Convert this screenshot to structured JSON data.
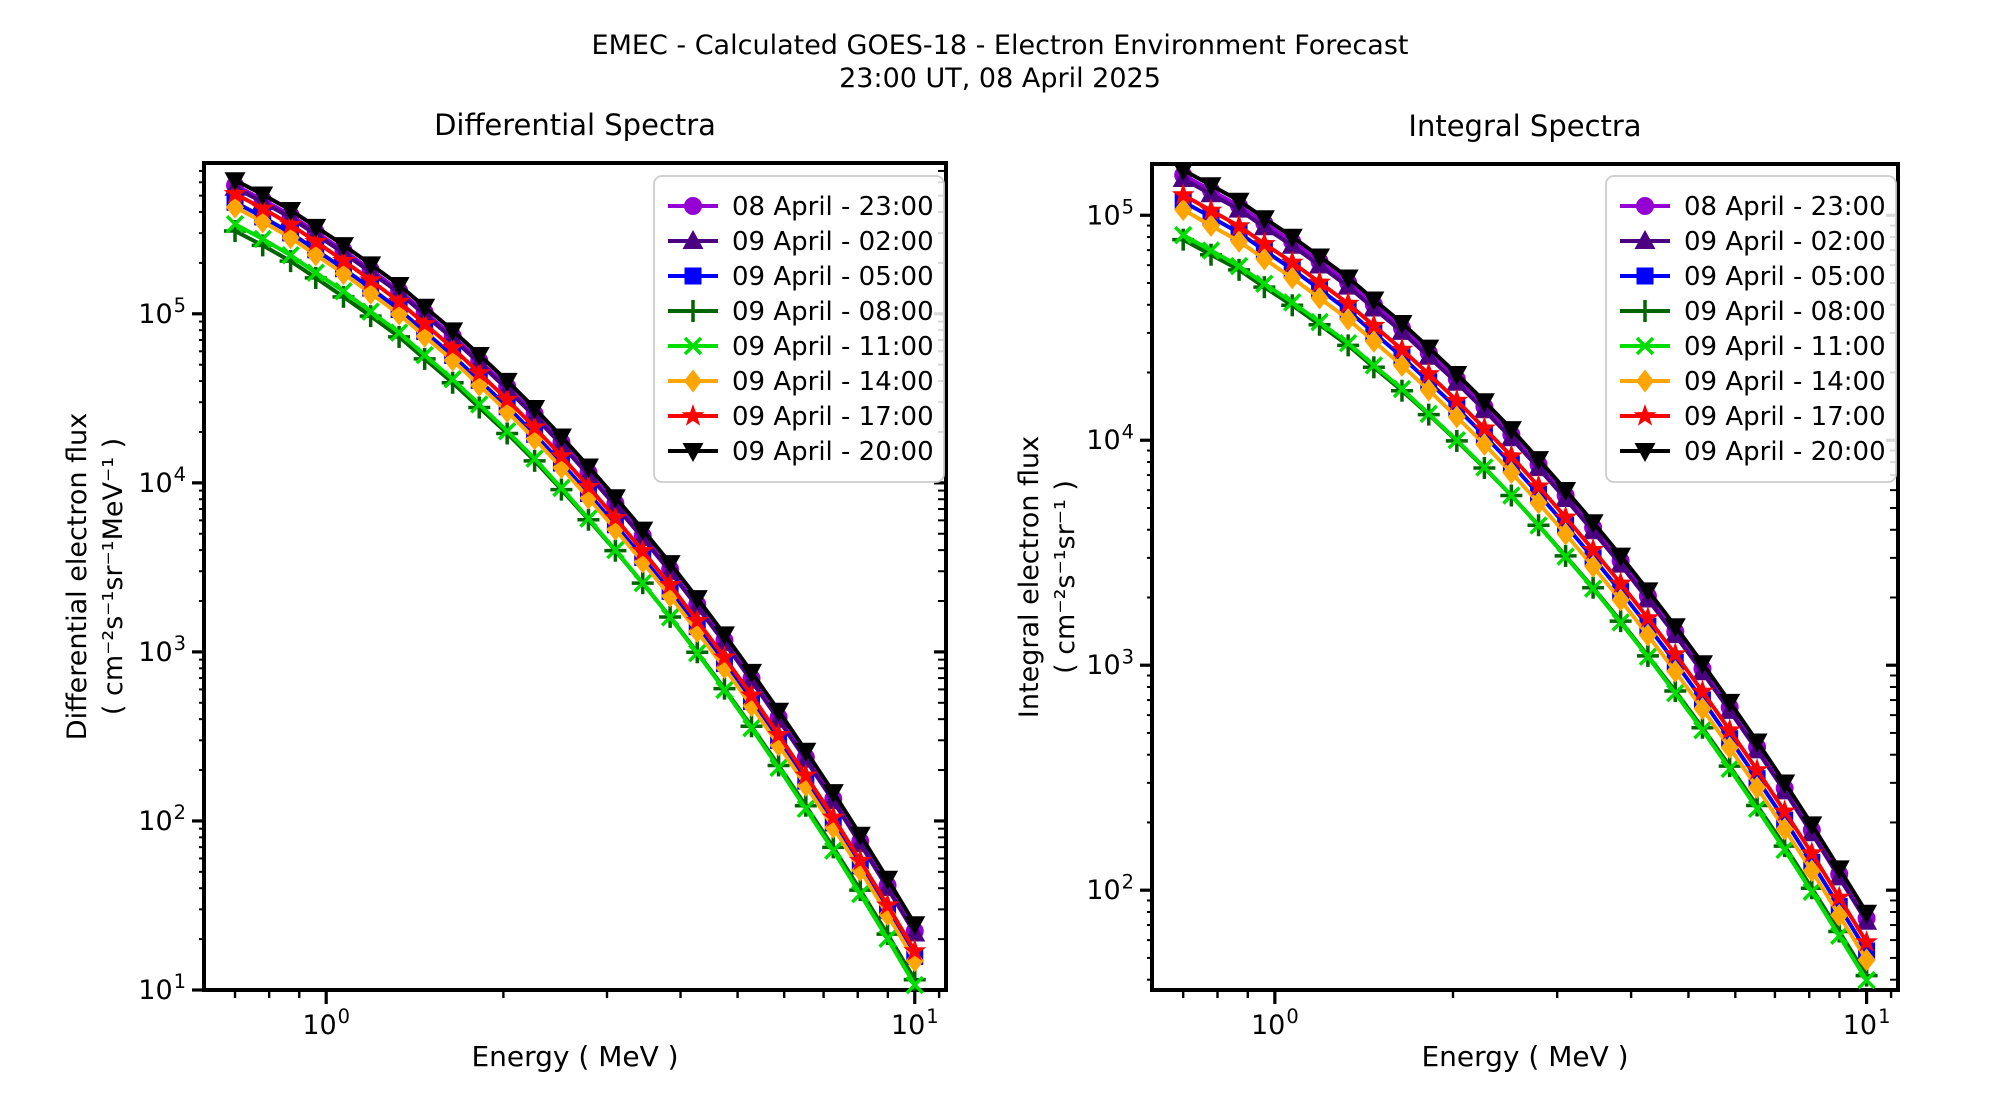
{
  "title": {
    "line1": "EMEC - Calculated GOES-18 - Electron Environment Forecast",
    "line2": "23:00 UT, 08 April 2025"
  },
  "chart_data": [
    {
      "type": "line",
      "title": "Differential Spectra",
      "xlabel": "Energy ( MeV )",
      "ylabel_line1": "Differential electron flux",
      "ylabel_line2": "( cm⁻²s⁻¹sr⁻¹MeV⁻¹ )",
      "xscale": "log",
      "yscale": "log",
      "xlim": [
        0.62,
        11.3
      ],
      "ylim": [
        10,
        780000
      ],
      "grid": false,
      "legend_position": "upper right",
      "xticks": [
        {
          "v": 1,
          "label": "10⁰"
        },
        {
          "v": 10,
          "label": "10¹"
        }
      ],
      "xticks_minor": [
        0.7,
        0.8,
        0.9,
        2,
        3,
        4,
        5,
        6,
        7,
        8,
        9,
        11
      ],
      "yticks": [
        {
          "v": 10,
          "label": "10¹"
        },
        {
          "v": 100,
          "label": "10²"
        },
        {
          "v": 1000,
          "label": "10³"
        },
        {
          "v": 10000,
          "label": "10⁴"
        },
        {
          "v": 100000,
          "label": "10⁵"
        }
      ],
      "x": [
        0.7,
        0.78,
        0.87,
        0.96,
        1.07,
        1.19,
        1.33,
        1.47,
        1.64,
        1.82,
        2.03,
        2.26,
        2.51,
        2.79,
        3.1,
        3.45,
        3.84,
        4.27,
        4.75,
        5.28,
        5.87,
        6.53,
        7.27,
        8.08,
        8.99,
        10
      ],
      "series": [
        {
          "name": "08 April - 23:00",
          "color": "#9400D3",
          "marker": "circle",
          "values": [
            576000,
            474000,
            383000,
            304000,
            237000,
            182000,
            137000,
            102000,
            73900,
            52800,
            37100,
            25600,
            17400,
            11500,
            7570,
            4870,
            3080,
            1910,
            1170,
            699,
            411,
            238,
            135,
            75.7,
            41.5,
            22.3
          ]
        },
        {
          "name": "09 April - 02:00",
          "color": "#4B0082",
          "marker": "triangle-up",
          "values": [
            557000,
            458000,
            370000,
            294000,
            229000,
            176000,
            133000,
            98600,
            71400,
            51100,
            35800,
            24700,
            16800,
            11100,
            7320,
            4710,
            2980,
            1850,
            1130,
            675,
            397,
            230,
            131,
            73.1,
            40.1,
            21.6
          ]
        },
        {
          "name": "09 April - 05:00",
          "color": "#0000FF",
          "marker": "square",
          "values": [
            457000,
            374000,
            301000,
            239000,
            185000,
            142000,
            106000,
            78600,
            56700,
            40400,
            28200,
            19400,
            13100,
            8650,
            5650,
            3620,
            2280,
            1410,
            854,
            510,
            299,
            172,
            97.3,
            54.1,
            29.6,
            15.8
          ]
        },
        {
          "name": "09 April - 08:00",
          "color": "#006400",
          "marker": "plus",
          "values": [
            309000,
            254000,
            205000,
            163000,
            126000,
            96900,
            73000,
            54100,
            39100,
            27900,
            19600,
            13500,
            9120,
            6050,
            3970,
            2550,
            1610,
            995,
            606,
            363,
            213,
            123,
            69.8,
            39,
            21.4,
            11.5
          ]
        },
        {
          "name": "09 April - 11:00",
          "color": "#00DD00",
          "marker": "x",
          "values": [
            339000,
            277000,
            222000,
            175000,
            136000,
            103000,
            77400,
            57000,
            41000,
            29100,
            20200,
            13900,
            9320,
            6140,
            4000,
            2550,
            1600,
            984,
            595,
            354,
            206,
            118,
            66.7,
            36.9,
            20.1,
            10.7
          ]
        },
        {
          "name": "09 April - 14:00",
          "color": "#FFA500",
          "marker": "diamond",
          "values": [
            427000,
            350000,
            282000,
            223000,
            173000,
            132000,
            99500,
            73600,
            53100,
            37800,
            26400,
            18200,
            12300,
            8120,
            5310,
            3400,
            2140,
            1320,
            804,
            480,
            281,
            162,
            91.7,
            51.1,
            27.9,
            14.9
          ]
        },
        {
          "name": "09 April - 17:00",
          "color": "#FF0000",
          "marker": "star",
          "values": [
            513000,
            420000,
            337000,
            267000,
            206000,
            158000,
            118000,
            87200,
            62800,
            44600,
            31100,
            21300,
            14400,
            9490,
            6200,
            3960,
            2490,
            1530,
            929,
            553,
            323,
            186,
            105,
            58.2,
            31.7,
            17
          ]
        },
        {
          "name": "09 April - 20:00",
          "color": "#000000",
          "marker": "triangle-down",
          "values": [
            617000,
            508000,
            411000,
            327000,
            255000,
            196000,
            148000,
            110000,
            79800,
            57100,
            40100,
            27700,
            18800,
            12500,
            8220,
            5290,
            3350,
            2080,
            1270,
            762,
            449,
            260,
            148,
            82.8,
            45.5,
            24.5
          ]
        }
      ]
    },
    {
      "type": "line",
      "title": "Integral Spectra",
      "xlabel": "Energy ( MeV )",
      "ylabel_line1": "Integral electron flux",
      "ylabel_line2": "( cm⁻²s⁻¹sr⁻¹ )",
      "xscale": "log",
      "yscale": "log",
      "xlim": [
        0.62,
        11.3
      ],
      "ylim": [
        36,
        169000
      ],
      "grid": false,
      "legend_position": "upper right",
      "xticks": [
        {
          "v": 1,
          "label": "10⁰"
        },
        {
          "v": 10,
          "label": "10¹"
        }
      ],
      "xticks_minor": [
        0.7,
        0.8,
        0.9,
        2,
        3,
        4,
        5,
        6,
        7,
        8,
        9,
        11
      ],
      "yticks": [
        {
          "v": 100,
          "label": "10²"
        },
        {
          "v": 1000,
          "label": "10³"
        },
        {
          "v": 10000,
          "label": "10⁴"
        },
        {
          "v": 100000,
          "label": "10⁵"
        }
      ],
      "x": [
        0.7,
        0.78,
        0.87,
        0.96,
        1.07,
        1.19,
        1.33,
        1.47,
        1.64,
        1.82,
        2.03,
        2.26,
        2.51,
        2.79,
        3.1,
        3.45,
        3.84,
        4.27,
        4.75,
        5.28,
        5.87,
        6.53,
        7.27,
        8.08,
        8.99,
        10
      ],
      "series": [
        {
          "name": "08 April - 23:00",
          "color": "#9400D3",
          "marker": "circle",
          "values": [
            151000,
            129000,
            110000,
            92200,
            76300,
            62300,
            50200,
            40100,
            31500,
            24500,
            18700,
            14100,
            10600,
            7810,
            5690,
            4090,
            2910,
            2030,
            1410,
            965,
            650,
            433,
            284,
            185,
            118,
            75
          ]
        },
        {
          "name": "09 April - 02:00",
          "color": "#4B0082",
          "marker": "triangle-up",
          "values": [
            145000,
            124000,
            106000,
            88500,
            73200,
            59800,
            48200,
            38500,
            30300,
            23500,
            18000,
            13600,
            10200,
            7520,
            5480,
            3940,
            2800,
            1960,
            1360,
            930,
            627,
            418,
            275,
            179,
            114,
            72.4
          ]
        },
        {
          "name": "09 April - 05:00",
          "color": "#0000FF",
          "marker": "square",
          "values": [
            115000,
            98200,
            83500,
            69700,
            57500,
            46900,
            37700,
            30000,
            23500,
            18200,
            13900,
            10500,
            7850,
            5760,
            4190,
            3000,
            2130,
            1490,
            1030,
            701,
            471,
            313,
            205,
            133,
            84.7,
            53.7
          ]
        },
        {
          "name": "09 April - 08:00",
          "color": "#006400",
          "marker": "plus",
          "values": [
            77900,
            66800,
            57200,
            47900,
            39800,
            32600,
            26400,
            21100,
            16600,
            13000,
            9930,
            7530,
            5680,
            4190,
            3060,
            2210,
            1570,
            1100,
            768,
            527,
            356,
            238,
            157,
            102,
            65.5,
            41.7
          ]
        },
        {
          "name": "09 April - 11:00",
          "color": "#00DD00",
          "marker": "x",
          "values": [
            81600,
            69700,
            59400,
            49600,
            41000,
            33500,
            27000,
            21500,
            16900,
            13100,
            10000,
            7570,
            5680,
            4180,
            3040,
            2190,
            1550,
            1090,
            751,
            514,
            346,
            230,
            151,
            98.4,
            62.7,
            39.8
          ]
        },
        {
          "name": "09 April - 14:00",
          "color": "#FFA500",
          "marker": "diamond",
          "values": [
            106000,
            90000,
            76600,
            63900,
            52700,
            42900,
            34500,
            27500,
            21500,
            16700,
            12700,
            9590,
            7180,
            5270,
            3830,
            2750,
            1950,
            1360,
            939,
            641,
            430,
            286,
            187,
            122,
            77.4,
            49
          ]
        },
        {
          "name": "09 April - 17:00",
          "color": "#FF0000",
          "marker": "star",
          "values": [
            123000,
            105000,
            89500,
            74700,
            61700,
            50300,
            40500,
            32300,
            25300,
            19700,
            15000,
            11300,
            8490,
            6240,
            4540,
            3260,
            2310,
            1620,
            1120,
            764,
            514,
            342,
            224,
            146,
            92.8,
            58.8
          ]
        },
        {
          "name": "09 April - 20:00",
          "color": "#000000",
          "marker": "triangle-down",
          "values": [
            159000,
            136000,
            116000,
            97000,
            80300,
            65600,
            52900,
            42200,
            33200,
            25800,
            19700,
            14900,
            11200,
            8240,
            6010,
            4320,
            3070,
            2150,
            1490,
            1020,
            687,
            458,
            301,
            196,
            125,
            79.4
          ]
        }
      ]
    }
  ]
}
